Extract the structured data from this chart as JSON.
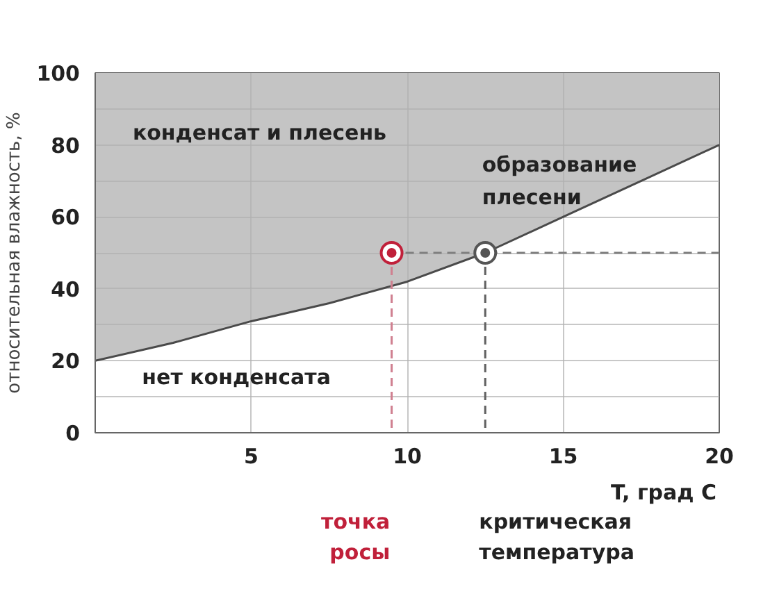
{
  "chart_data": {
    "type": "line",
    "xlabel": "T, град C",
    "ylabel": "относительная влажность, %",
    "xlim": [
      0,
      20
    ],
    "ylim": [
      0,
      100
    ],
    "xticks": [
      5,
      10,
      15,
      20
    ],
    "yticks": [
      0,
      {
        "value": 10,
        "label": null
      },
      20,
      {
        "value": 30,
        "label": null
      },
      40,
      {
        "value": 50,
        "label": null
      },
      60,
      {
        "value": 70,
        "label": null
      },
      80,
      {
        "value": 90,
        "label": null
      },
      100
    ],
    "grid": true,
    "series": [
      {
        "type": "line",
        "color": "#4a4a4a",
        "x": [
          0,
          2.5,
          5,
          7.5,
          10,
          12.5,
          15,
          17.5,
          20
        ],
        "values": [
          20,
          25,
          31,
          36,
          42,
          50,
          60,
          70,
          80
        ],
        "lower": [
          20,
          25,
          31,
          36,
          42,
          50,
          60,
          70,
          80
        ],
        "upper": [
          100,
          100,
          100,
          100,
          100,
          100,
          100,
          100,
          100
        ]
      },
      {
        "type": "line",
        "color": "#d08090",
        "line_style": "dashed",
        "x": [
          9.5,
          9.5
        ],
        "values": [
          50,
          0
        ]
      },
      {
        "type": "line",
        "color": "#808080",
        "line_style": "dashed",
        "x": [
          9.5,
          20
        ],
        "values": [
          50,
          50
        ]
      },
      {
        "type": "line",
        "color": "#606060",
        "line_style": "dashed",
        "x": [
          12.5,
          12.5
        ],
        "values": [
          50,
          0
        ]
      },
      {
        "type": "scatter",
        "marker": "circle",
        "color": "#c0203a",
        "x": [
          9.5
        ],
        "values": [
          50
        ]
      },
      {
        "type": "scatter",
        "marker": "circle",
        "color": "#555555",
        "x": [
          12.5
        ],
        "values": [
          50
        ]
      }
    ],
    "annotations": [
      "конденсат и плесень",
      "образование плесени",
      "нет конденсата",
      "точка росы",
      "критическая температура"
    ]
  }
}
